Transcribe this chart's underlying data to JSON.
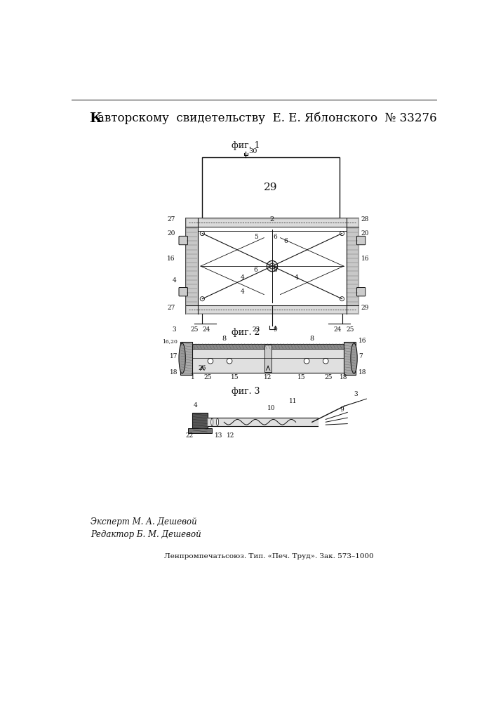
{
  "bg_color": "#ffffff",
  "text_color": "#000000",
  "dc": "#111111",
  "header_bold": "К",
  "header_rest": " авторскому  свидетельству  Е. Е. Яблонского  № 33276",
  "fig1_label": "фиг. 1",
  "fig2_label": "фиг. 2",
  "fig3_label": "фиг. 3",
  "expert_text": "Эксперт М. А. Дешевой",
  "editor_text": "Редактор Б. М. Дешевой",
  "footer_text": "Ленпромпечатьсоюз. Тип. «Печ. Труд». Зак. 573–1000",
  "label30": "30",
  "label29": "29",
  "label2": "2",
  "label27a": "27",
  "label28a": "28",
  "label20a": "20",
  "label20b": "20",
  "label16a": "16",
  "label16b": "16",
  "label4a": "4",
  "label27b": "27",
  "label29b": "29",
  "label25a": "25",
  "label24a": "24",
  "label23": "23",
  "label9a": "9",
  "label24b": "24",
  "label25b": "25",
  "label3": "3"
}
